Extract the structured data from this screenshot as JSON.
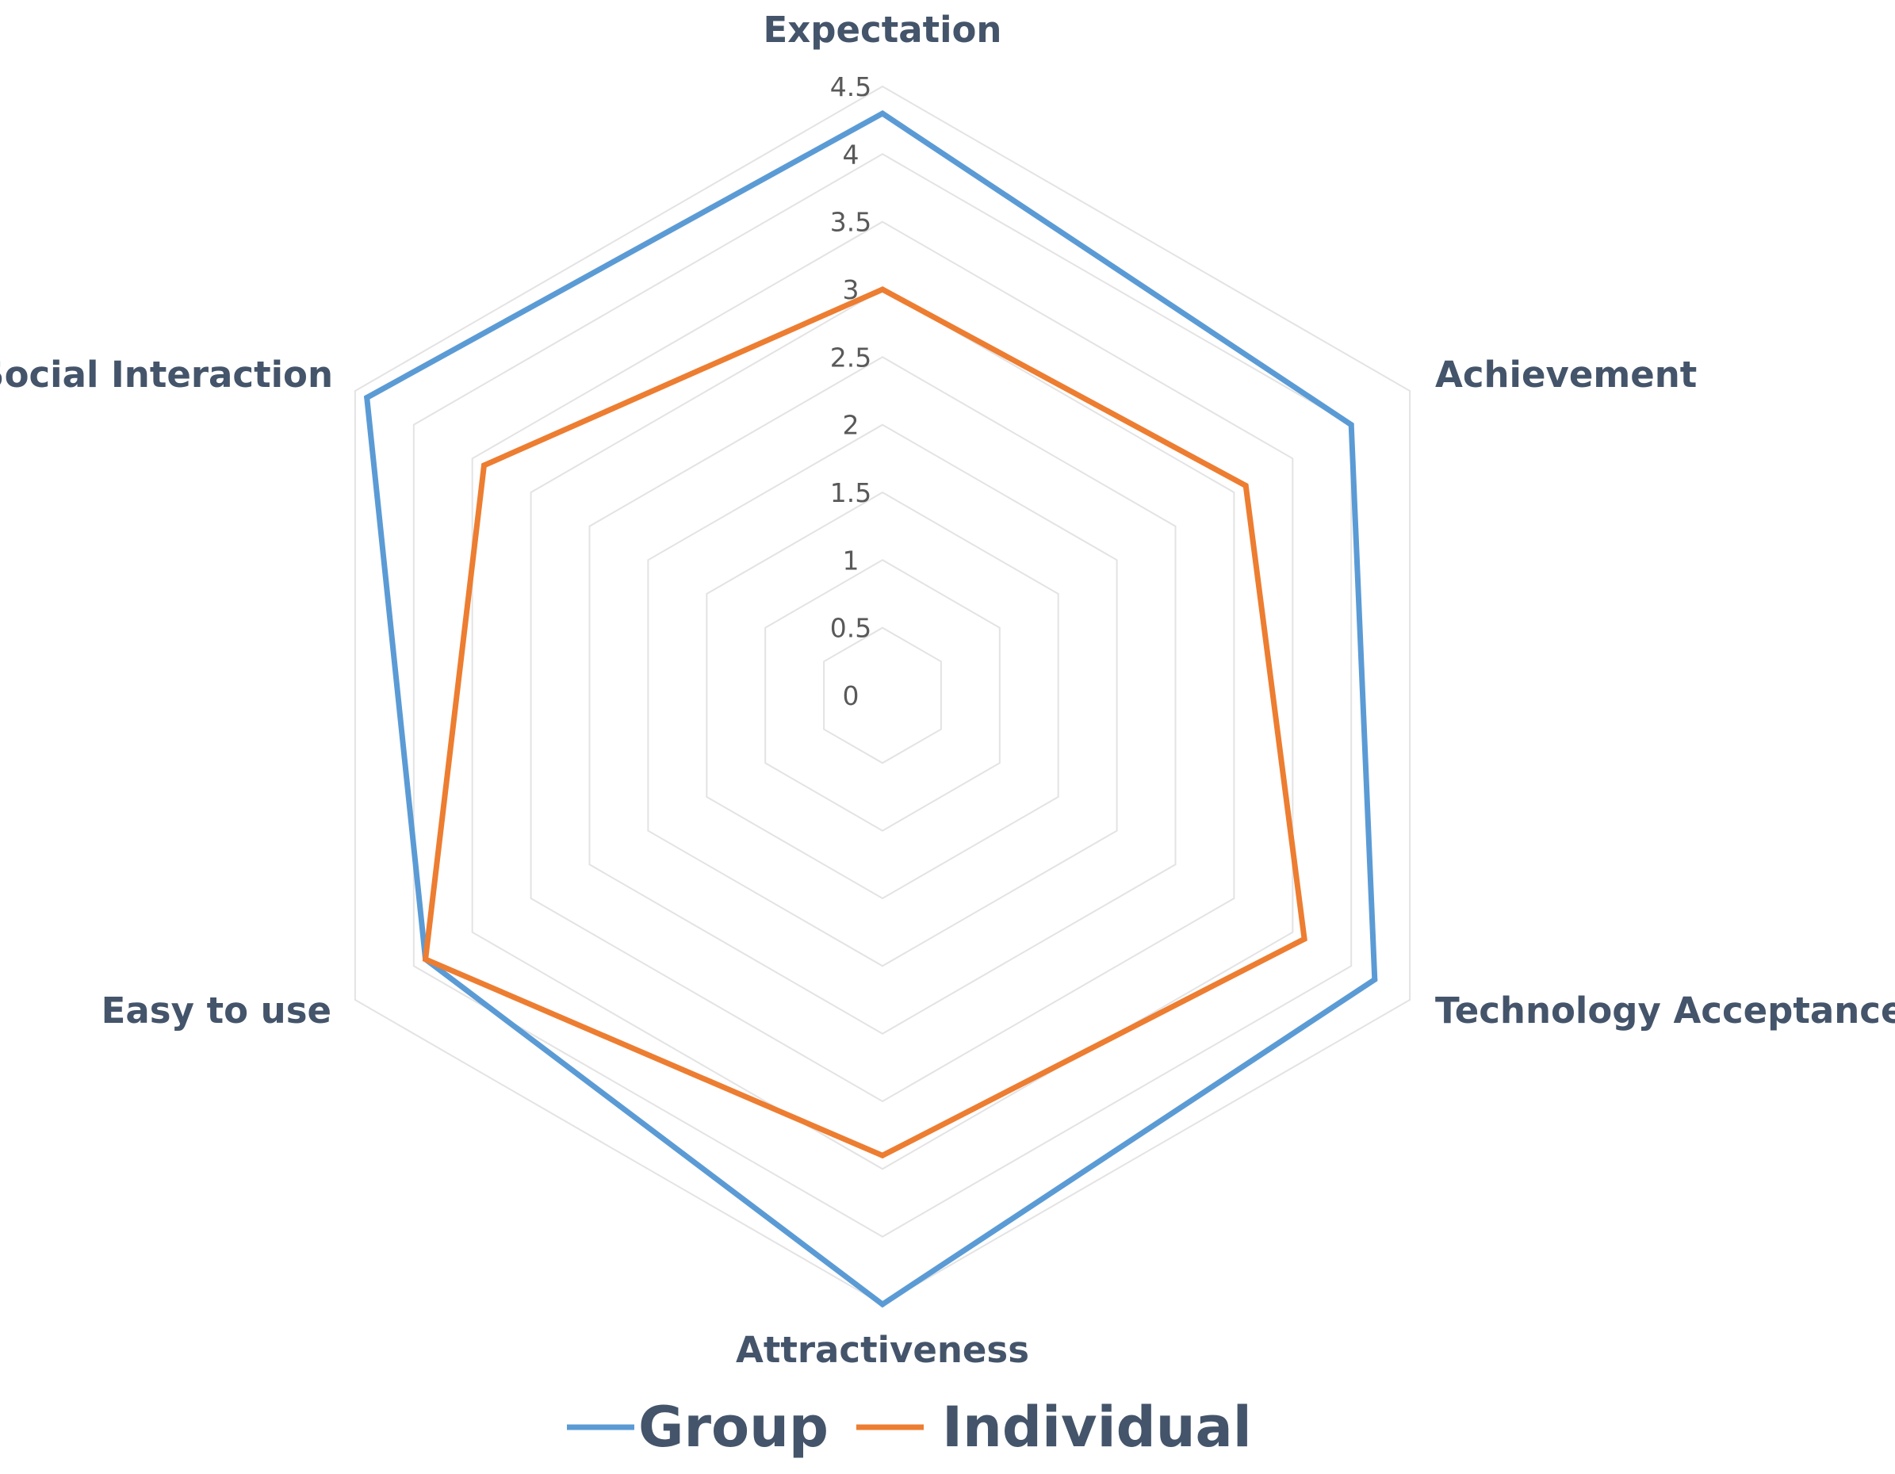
{
  "chart_data": {
    "type": "radar",
    "axes": [
      "Expectation",
      "Achievement",
      "Technology Acceptance",
      "Attractiveness",
      "Easy to use",
      "Social Interaction"
    ],
    "ticks": [
      "0",
      "0.5",
      "1",
      "1.5",
      "2",
      "2.5",
      "3",
      "3.5",
      "4",
      "4.5"
    ],
    "rlim": [
      0,
      4.5
    ],
    "series": [
      {
        "name": "Group",
        "color": "#5b9bd5",
        "values": [
          4.3,
          4.0,
          4.2,
          4.5,
          3.9,
          4.4
        ]
      },
      {
        "name": "Individual",
        "color": "#ed7d31",
        "values": [
          3.0,
          3.1,
          3.6,
          3.4,
          3.9,
          3.4
        ]
      }
    ],
    "grid": true,
    "legend": "bottom-center"
  }
}
